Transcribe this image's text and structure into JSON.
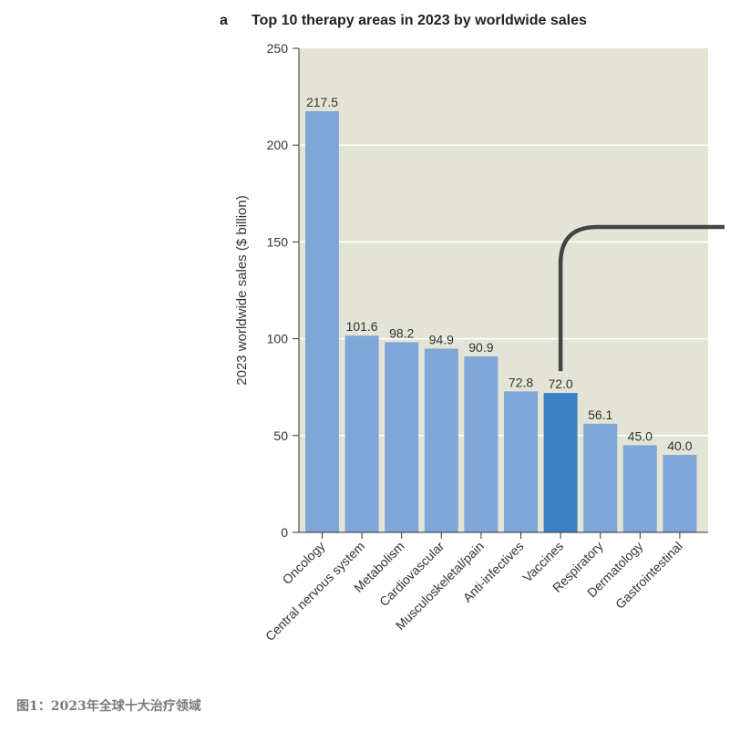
{
  "panel_letter": "a",
  "caption": "图1：2023年全球十大治疗领域",
  "colors": {
    "plot_bg": "#e3e3d6",
    "bar": "#7ea6d6",
    "highlight_bar": "#3a82c3",
    "gridline": "#ffffff",
    "callout_line": "#444444"
  },
  "chart_data": {
    "type": "bar",
    "title": "Top 10 therapy areas in 2023 by worldwide sales",
    "xlabel": "",
    "ylabel": "2023 worldwide sales ($ billion)",
    "ylim": [
      0,
      250
    ],
    "yticks": [
      0,
      50,
      100,
      150,
      200,
      250
    ],
    "grid": true,
    "highlight": "Vaccines",
    "categories": [
      "Oncology",
      "Central nervous system",
      "Metabolism",
      "Cardiovascular",
      "Musculoskeletal/pain",
      "Anti-infectives",
      "Vaccines",
      "Respiratory",
      "Dermatology",
      "Gastrointestinal"
    ],
    "values": [
      217.5,
      101.6,
      98.2,
      94.9,
      90.9,
      72.8,
      72.0,
      56.1,
      45.0,
      40.0
    ],
    "value_labels": [
      "217.5",
      "101.6",
      "98.2",
      "94.9",
      "90.9",
      "72.8",
      "72.0",
      "56.1",
      "45.0",
      "40.0"
    ]
  }
}
